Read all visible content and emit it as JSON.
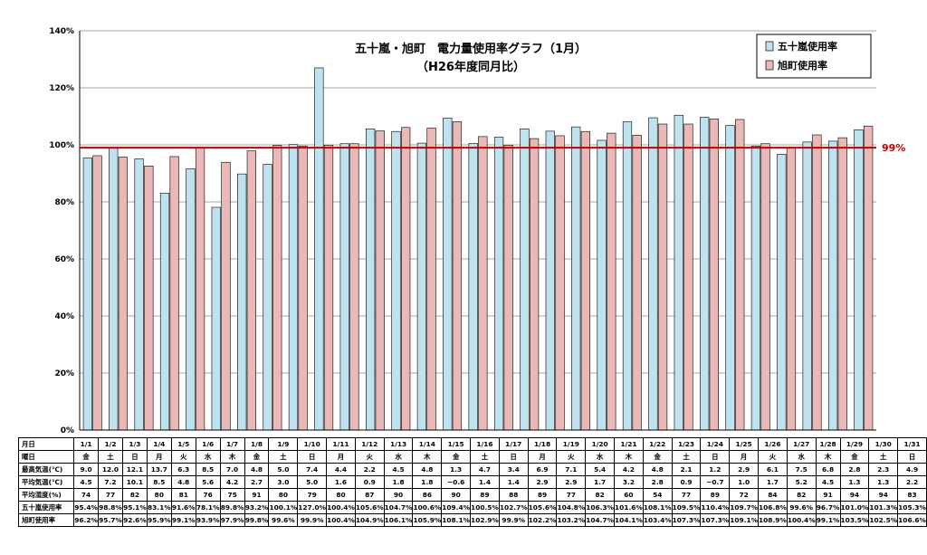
{
  "chart_data": {
    "type": "bar",
    "title": "五十嵐・旭町　電力量使用率グラフ（1月）",
    "subtitle": "（H26年度同月比）",
    "categories": [
      "1/1",
      "1/2",
      "1/3",
      "1/4",
      "1/5",
      "1/6",
      "1/7",
      "1/8",
      "1/9",
      "1/10",
      "1/11",
      "1/12",
      "1/13",
      "1/14",
      "1/15",
      "1/16",
      "1/17",
      "1/18",
      "1/19",
      "1/20",
      "1/21",
      "1/22",
      "1/23",
      "1/24",
      "1/25",
      "1/26",
      "1/27",
      "1/28",
      "1/29",
      "1/30",
      "1/31"
    ],
    "series": [
      {
        "name": "五十嵐使用率",
        "color": "#bfe3ee",
        "values": [
          95.4,
          98.8,
          95.1,
          83.1,
          91.6,
          78.1,
          89.8,
          93.2,
          100.1,
          127.0,
          100.4,
          105.6,
          104.7,
          100.6,
          109.4,
          100.5,
          102.7,
          105.6,
          104.8,
          106.3,
          101.6,
          108.1,
          109.5,
          110.4,
          109.7,
          106.8,
          99.6,
          96.7,
          101.0,
          101.3,
          105.3
        ]
      },
      {
        "name": "旭町使用率",
        "color": "#ebb8b8",
        "values": [
          96.2,
          95.7,
          92.6,
          95.9,
          99.1,
          93.9,
          97.9,
          99.8,
          99.6,
          99.9,
          100.4,
          104.9,
          106.1,
          105.9,
          108.1,
          102.9,
          99.9,
          102.2,
          103.2,
          104.7,
          104.1,
          103.4,
          107.3,
          107.3,
          109.1,
          108.9,
          100.4,
          99.1,
          103.5,
          102.5,
          106.6
        ]
      }
    ],
    "ylim": [
      0,
      140
    ],
    "yticks": [
      0,
      20,
      40,
      60,
      80,
      100,
      120,
      140
    ],
    "ytick_labels": [
      "0%",
      "20%",
      "40%",
      "60%",
      "80%",
      "100%",
      "120%",
      "140%"
    ],
    "reference_line": {
      "value": 99,
      "label": "99%",
      "color": "#c00000"
    },
    "grid": true,
    "legend_position": "top-right"
  },
  "table": {
    "row_labels": {
      "date": "月日",
      "weekday": "曜日",
      "max_temp": "最高気温(℃)",
      "avg_temp": "平均気温(℃)",
      "avg_humidity": "平均湿度(%)",
      "igarashi_rate": "五十嵐使用率",
      "asahi_rate": "旭町使用率"
    },
    "weekday": [
      "金",
      "土",
      "日",
      "月",
      "火",
      "水",
      "木",
      "金",
      "土",
      "日",
      "月",
      "火",
      "水",
      "木",
      "金",
      "土",
      "日",
      "月",
      "火",
      "水",
      "木",
      "金",
      "土",
      "日",
      "月",
      "火",
      "水",
      "木",
      "金",
      "土",
      "日"
    ],
    "max_temp": [
      "9.0",
      "12.0",
      "12.1",
      "13.7",
      "6.3",
      "8.5",
      "7.0",
      "4.8",
      "5.0",
      "7.4",
      "4.4",
      "2.2",
      "4.5",
      "4.8",
      "1.3",
      "4.7",
      "3.4",
      "6.9",
      "7.1",
      "5.4",
      "4.2",
      "4.8",
      "2.1",
      "1.2",
      "2.9",
      "6.1",
      "7.5",
      "6.8",
      "2.8",
      "2.3",
      "4.9"
    ],
    "avg_temp": [
      "4.5",
      "7.2",
      "10.1",
      "8.5",
      "4.8",
      "5.6",
      "4.2",
      "2.7",
      "3.0",
      "5.0",
      "1.6",
      "0.9",
      "1.8",
      "1.8",
      "−0.6",
      "1.4",
      "1.4",
      "2.9",
      "2.9",
      "1.7",
      "3.2",
      "2.8",
      "0.9",
      "−0.7",
      "1.0",
      "1.7",
      "5.2",
      "4.5",
      "1.3",
      "1.3",
      "2.2"
    ],
    "avg_humidity": [
      "74",
      "77",
      "82",
      "80",
      "81",
      "76",
      "75",
      "91",
      "80",
      "79",
      "80",
      "87",
      "90",
      "86",
      "90",
      "89",
      "88",
      "89",
      "77",
      "82",
      "60",
      "54",
      "77",
      "89",
      "72",
      "84",
      "82",
      "91",
      "94",
      "94",
      "83"
    ],
    "igarashi_rate": [
      "95.4%",
      "98.8%",
      "95.1%",
      "83.1%",
      "91.6%",
      "78.1%",
      "89.8%",
      "93.2%",
      "100.1%",
      "127.0%",
      "100.4%",
      "105.6%",
      "104.7%",
      "100.6%",
      "109.4%",
      "100.5%",
      "102.7%",
      "105.6%",
      "104.8%",
      "106.3%",
      "101.6%",
      "108.1%",
      "109.5%",
      "110.4%",
      "109.7%",
      "106.8%",
      "99.6%",
      "96.7%",
      "101.0%",
      "101.3%",
      "105.3%"
    ],
    "asahi_rate": [
      "96.2%",
      "95.7%",
      "92.6%",
      "95.9%",
      "99.1%",
      "93.9%",
      "97.9%",
      "99.8%",
      "99.6%",
      "99.9%",
      "100.4%",
      "104.9%",
      "106.1%",
      "105.9%",
      "108.1%",
      "102.9%",
      "99.9%",
      "102.2%",
      "103.2%",
      "104.7%",
      "104.1%",
      "103.4%",
      "107.3%",
      "107.3%",
      "109.1%",
      "108.9%",
      "100.4%",
      "99.1%",
      "103.5%",
      "102.5%",
      "106.6%"
    ]
  }
}
